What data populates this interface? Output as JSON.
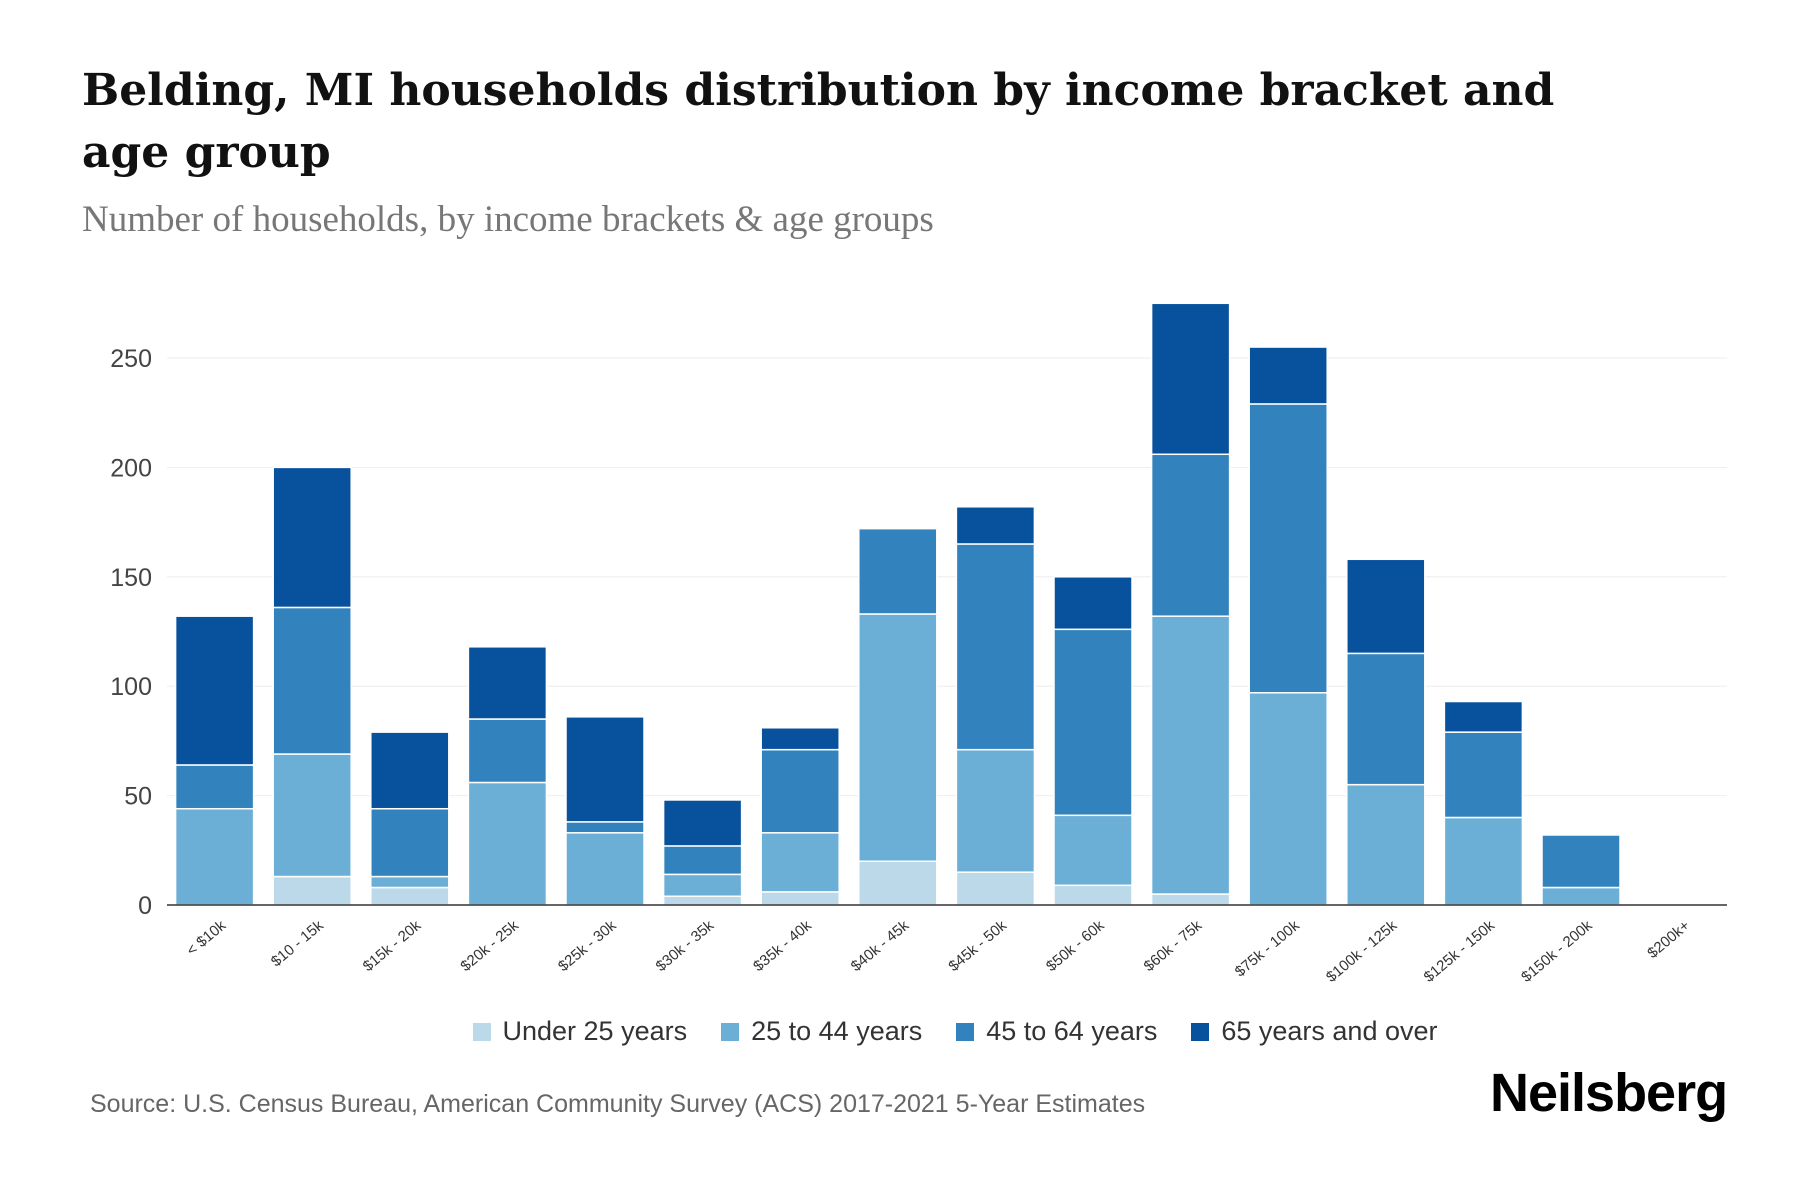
{
  "title": "Belding, MI households distribution by income bracket and age group",
  "subtitle": "Number of households, by income brackets & age groups",
  "source": "Source: U.S. Census Bureau, American Community Survey (ACS) 2017-2021 5-Year Estimates",
  "logo": "Neilsberg",
  "chart_data": {
    "type": "bar",
    "stacked": true,
    "title": "Belding, MI households distribution by income bracket and age group",
    "xlabel": "",
    "ylabel": "Number of households",
    "ylim": [
      0,
      280
    ],
    "yticks": [
      0,
      50,
      100,
      150,
      200,
      250
    ],
    "grid": true,
    "legend_position": "bottom",
    "categories": [
      "< $10k",
      "$10 - 15k",
      "$15k - 20k",
      "$20k - 25k",
      "$25k - 30k",
      "$30k - 35k",
      "$35k - 40k",
      "$40k - 45k",
      "$45k - 50k",
      "$50k - 60k",
      "$60k - 75k",
      "$75k - 100k",
      "$100k - 125k",
      "$125k - 150k",
      "$150k - 200k",
      "$200k+"
    ],
    "series": [
      {
        "name": "Under 25 years",
        "color": "#bcd9ea",
        "values": [
          0,
          13,
          8,
          0,
          0,
          4,
          6,
          20,
          15,
          9,
          5,
          0,
          0,
          0,
          0,
          0
        ]
      },
      {
        "name": "25 to 44 years",
        "color": "#6baed6",
        "values": [
          44,
          56,
          5,
          56,
          33,
          10,
          27,
          113,
          56,
          32,
          127,
          97,
          55,
          40,
          8,
          0
        ]
      },
      {
        "name": "45 to 64 years",
        "color": "#3182bd",
        "values": [
          20,
          67,
          31,
          29,
          5,
          13,
          38,
          39,
          94,
          85,
          74,
          132,
          60,
          39,
          24,
          0
        ]
      },
      {
        "name": "65 years and over",
        "color": "#08519c",
        "values": [
          68,
          64,
          35,
          33,
          48,
          21,
          10,
          0,
          17,
          24,
          69,
          26,
          43,
          14,
          0,
          0
        ]
      }
    ]
  }
}
